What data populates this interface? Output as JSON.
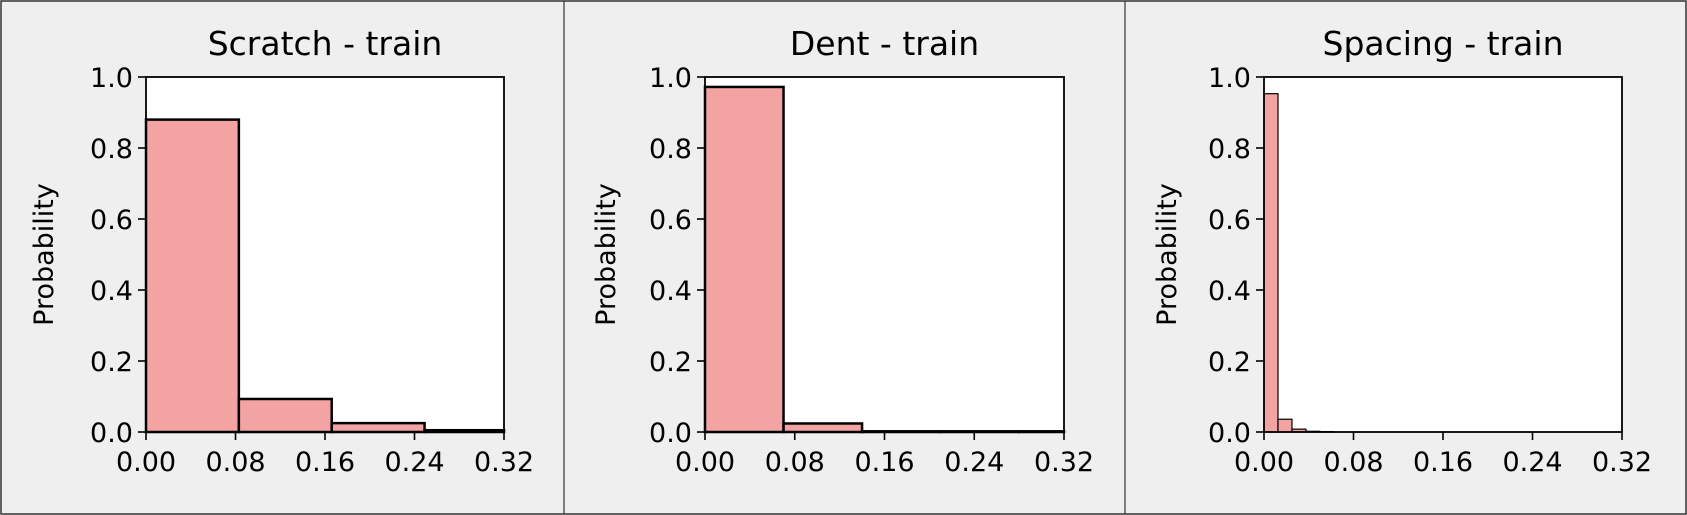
{
  "colors": {
    "bar_fill": "#f4a3a3",
    "bar_edge": "#000000",
    "panel_bg": "#efefef",
    "plot_bg": "#ffffff"
  },
  "chart_data": [
    {
      "type": "bar",
      "subtype": "histogram",
      "title": "Scratch - train",
      "xlabel": "",
      "ylabel": "Probability",
      "xlim": [
        0,
        0.32
      ],
      "ylim": [
        0,
        1.0
      ],
      "x_ticks": [
        "0.00",
        "0.08",
        "0.16",
        "0.24",
        "0.32"
      ],
      "y_ticks": [
        "0.0",
        "0.2",
        "0.4",
        "0.6",
        "0.8",
        "1.0"
      ],
      "grid": false,
      "bins": [
        {
          "x0": 0.0,
          "x1": 0.083,
          "value": 0.88
        },
        {
          "x0": 0.083,
          "x1": 0.166,
          "value": 0.093
        },
        {
          "x0": 0.166,
          "x1": 0.249,
          "value": 0.025
        },
        {
          "x0": 0.249,
          "x1": 0.332,
          "value": 0.005
        }
      ]
    },
    {
      "type": "bar",
      "subtype": "histogram",
      "title": "Dent - train",
      "xlabel": "",
      "ylabel": "Probability",
      "xlim": [
        0,
        0.32
      ],
      "ylim": [
        0,
        1.0
      ],
      "x_ticks": [
        "0.00",
        "0.08",
        "0.16",
        "0.24",
        "0.32"
      ],
      "y_ticks": [
        "0.0",
        "0.2",
        "0.4",
        "0.6",
        "0.8",
        "1.0"
      ],
      "grid": false,
      "bins": [
        {
          "x0": 0.0,
          "x1": 0.07,
          "value": 0.972
        },
        {
          "x0": 0.07,
          "x1": 0.14,
          "value": 0.024
        },
        {
          "x0": 0.14,
          "x1": 0.21,
          "value": 0.002
        },
        {
          "x0": 0.21,
          "x1": 0.28,
          "value": 0.002
        },
        {
          "x0": 0.28,
          "x1": 0.32,
          "value": 0.002
        }
      ]
    },
    {
      "type": "bar",
      "subtype": "histogram",
      "title": "Spacing - train",
      "xlabel": "",
      "ylabel": "Probability",
      "xlim": [
        0,
        0.32
      ],
      "ylim": [
        0,
        1.0
      ],
      "x_ticks": [
        "0.00",
        "0.08",
        "0.16",
        "0.24",
        "0.32"
      ],
      "y_ticks": [
        "0.0",
        "0.2",
        "0.4",
        "0.6",
        "0.8",
        "1.0"
      ],
      "grid": false,
      "bins": [
        {
          "x0": 0.0,
          "x1": 0.0125,
          "value": 0.953
        },
        {
          "x0": 0.0125,
          "x1": 0.025,
          "value": 0.036
        },
        {
          "x0": 0.025,
          "x1": 0.0375,
          "value": 0.008
        },
        {
          "x0": 0.0375,
          "x1": 0.05,
          "value": 0.002
        },
        {
          "x0": 0.05,
          "x1": 0.0625,
          "value": 0.001
        }
      ]
    }
  ]
}
